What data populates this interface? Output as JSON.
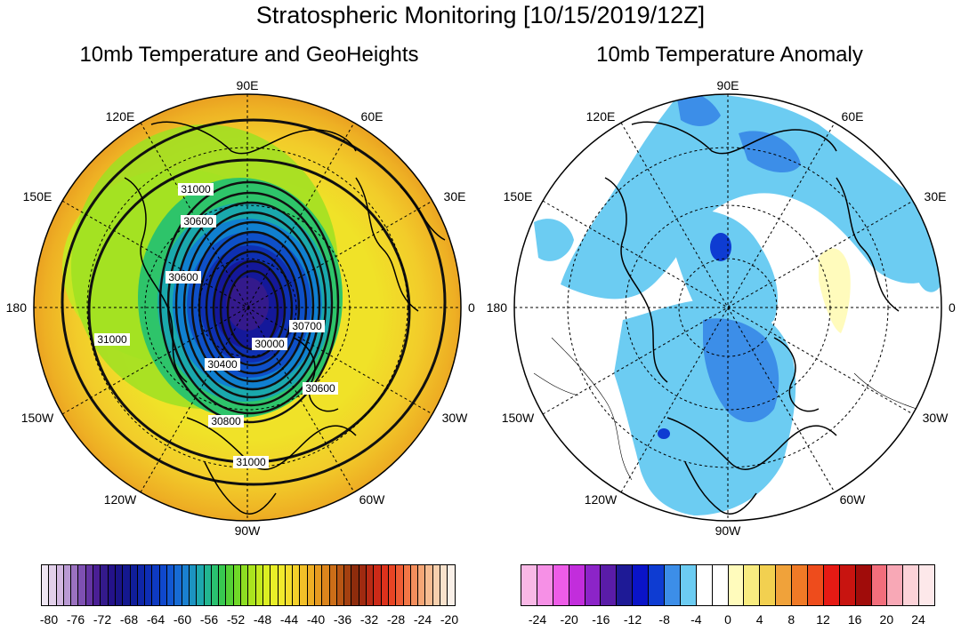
{
  "title": "Stratospheric Monitoring [10/15/2019/12Z]",
  "panels": {
    "left": {
      "title": "10mb Temperature and GeoHeights",
      "contour_labels": [
        "31000",
        "30600",
        "31000",
        "30600",
        "30400",
        "30000",
        "30700",
        "30600",
        "30800",
        "31000",
        "30800"
      ]
    },
    "right": {
      "title": "10mb Temperature Anomaly"
    }
  },
  "lon_labels": {
    "lon_90e": "90E",
    "lon_60e": "60E",
    "lon_30e": "30E",
    "lon_0": "0",
    "lon_30w": "30W",
    "lon_60w": "60W",
    "lon_90w": "90W",
    "lon_120w": "120W",
    "lon_150w": "150W",
    "lon_180": "180",
    "lon_150e": "150E",
    "lon_120e": "120E"
  },
  "colorbars": {
    "left": {
      "labels": [
        "-80",
        "-76",
        "-72",
        "-68",
        "-64",
        "-60",
        "-56",
        "-52",
        "-48",
        "-44",
        "-40",
        "-36",
        "-32",
        "-28",
        "-24",
        "-20"
      ],
      "colors": [
        "#efe6f3",
        "#e2d0ea",
        "#d2b8e0",
        "#b99ad3",
        "#9b72c0",
        "#7e50b2",
        "#6435a3",
        "#4a1f95",
        "#341a8c",
        "#24128a",
        "#1a1488",
        "#14188f",
        "#101e9a",
        "#0f26a8",
        "#0e2eb5",
        "#0e3ac2",
        "#0f48cc",
        "#1258d2",
        "#176bd4",
        "#1a80d0",
        "#1c94c2",
        "#1ea8ad",
        "#22b690",
        "#2ac170",
        "#38c850",
        "#54d035",
        "#70d828",
        "#8ede22",
        "#aae41e",
        "#c4ea1e",
        "#dcef22",
        "#eaef28",
        "#f1ea2c",
        "#f4de2c",
        "#f4d02a",
        "#f2c028",
        "#eeae24",
        "#e69a20",
        "#dc851c",
        "#cc6e18",
        "#b85614",
        "#a44010",
        "#8e2c0c",
        "#a02a10",
        "#b82a14",
        "#cc2a18",
        "#dc321c",
        "#e84424",
        "#ee5c34",
        "#f27646",
        "#f48e5c",
        "#f5a676",
        "#f6bc92",
        "#f7d0ae",
        "#f8e2cc",
        "#faf0e8"
      ]
    },
    "right": {
      "labels": [
        "-24",
        "-20",
        "-16",
        "-12",
        "-8",
        "-4",
        "0",
        "4",
        "8",
        "12",
        "16",
        "20",
        "24"
      ],
      "colors": [
        "#f9b8e6",
        "#f690e6",
        "#ee5ce8",
        "#c22ddc",
        "#8c24c8",
        "#5a1ca8",
        "#1e1a96",
        "#0a14c8",
        "#0e3cd2",
        "#3c8ee8",
        "#6cccf2",
        "#ffffff",
        "#ffffff",
        "#fffbbc",
        "#f8ec80",
        "#f2d050",
        "#f0a23a",
        "#f07a26",
        "#ee4c1c",
        "#e61a14",
        "#c81410",
        "#a00c0a",
        "#f26e7c",
        "#f8a8b6",
        "#fcd2d8",
        "#fde8ea"
      ]
    }
  }
}
